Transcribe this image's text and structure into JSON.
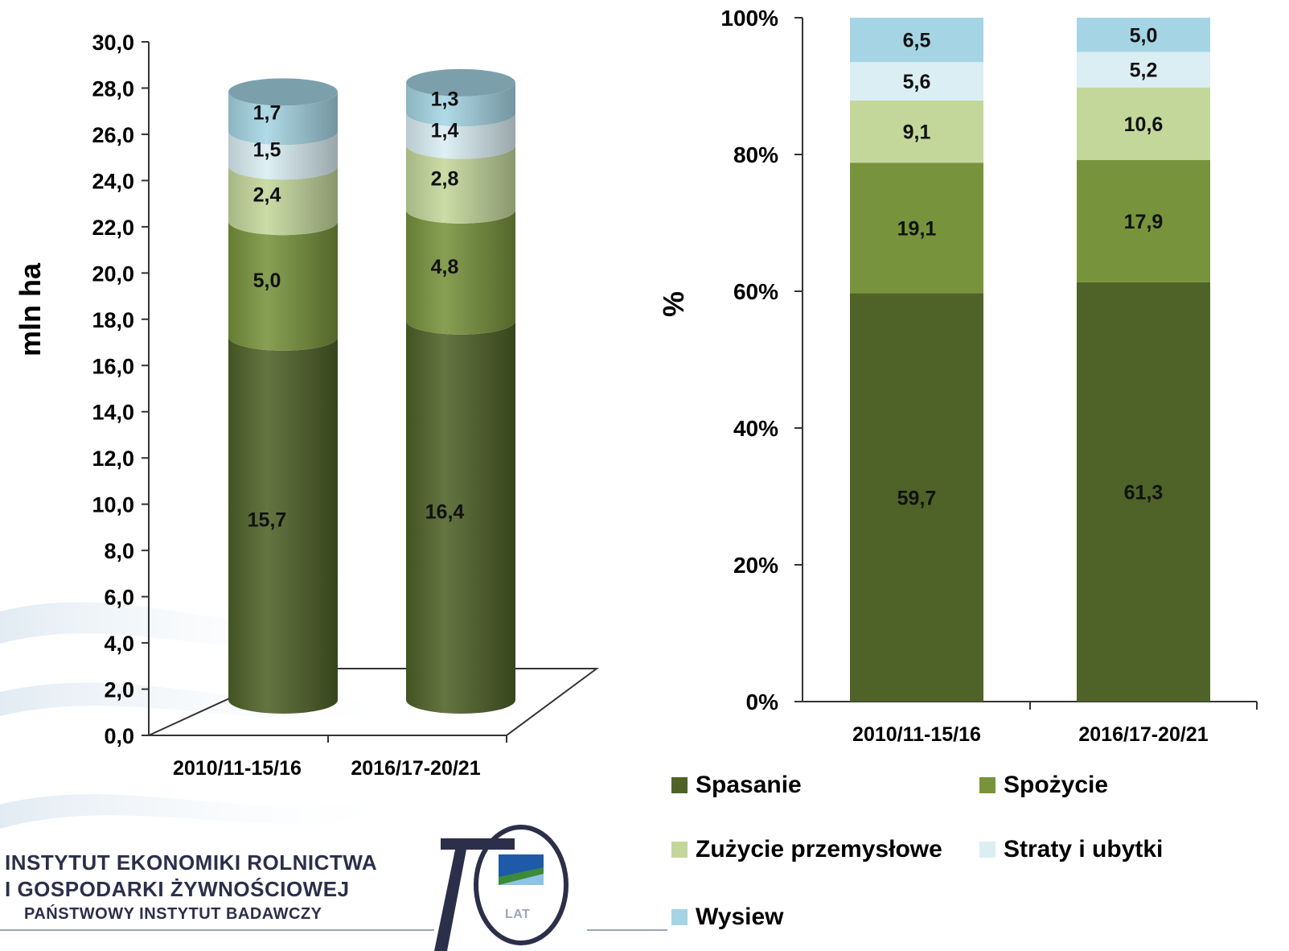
{
  "colors": {
    "spasanie": "#4f6228",
    "spozycie": "#77933c",
    "przemyslowe": "#c4d79b",
    "straty": "#dbeef4",
    "wysiew": "#a5d5e4"
  },
  "logo": {
    "line1": "INSTYTUT EKONOMIKI ROLNICTWA",
    "line2": "I GOSPODARKI ŻYWNOŚCIOWEJ",
    "line3": "PAŃSTWOWY INSTYTUT BADAWCZY",
    "emblem_text": "LAT"
  },
  "legend": [
    {
      "label": "Spasanie",
      "color_key": "spasanie"
    },
    {
      "label": "Spożycie",
      "color_key": "spozycie"
    },
    {
      "label": "Zużycie przemysłowe",
      "color_key": "przemyslowe"
    },
    {
      "label": "Straty i ubytki",
      "color_key": "straty"
    },
    {
      "label": "Wysiew",
      "color_key": "wysiew"
    }
  ],
  "chart_data": [
    {
      "type": "bar",
      "stacked": true,
      "style": "3d-cylinder",
      "categories": [
        "2010/11-15/16",
        "2016/17-20/21"
      ],
      "ylabel": "mln ha",
      "ylim": [
        0,
        30
      ],
      "yticks": [
        "0,0",
        "2,0",
        "4,0",
        "6,0",
        "8,0",
        "10,0",
        "12,0",
        "14,0",
        "16,0",
        "18,0",
        "20,0",
        "22,0",
        "24,0",
        "26,0",
        "28,0",
        "30,0"
      ],
      "series": [
        {
          "name": "Spasanie",
          "color_key": "spasanie",
          "values": [
            15.7,
            16.4
          ],
          "labels": [
            "15,7",
            "16,4"
          ]
        },
        {
          "name": "Spożycie",
          "color_key": "spozycie",
          "values": [
            5.0,
            4.8
          ],
          "labels": [
            "5,0",
            "4,8"
          ]
        },
        {
          "name": "Zużycie przemysłowe",
          "color_key": "przemyslowe",
          "values": [
            2.4,
            2.8
          ],
          "labels": [
            "2,4",
            "2,8"
          ]
        },
        {
          "name": "Straty i ubytki",
          "color_key": "straty",
          "values": [
            1.5,
            1.4
          ],
          "labels": [
            "1,5",
            "1,4"
          ]
        },
        {
          "name": "Wysiew",
          "color_key": "wysiew",
          "values": [
            1.7,
            1.3
          ],
          "labels": [
            "1,7",
            "1,3"
          ]
        }
      ]
    },
    {
      "type": "bar",
      "stacked": true,
      "percent": true,
      "categories": [
        "2010/11-15/16",
        "2016/17-20/21"
      ],
      "ylabel": "%",
      "ylim": [
        0,
        100
      ],
      "yticks": [
        "0%",
        "20%",
        "40%",
        "60%",
        "80%",
        "100%"
      ],
      "series": [
        {
          "name": "Spasanie",
          "color_key": "spasanie",
          "values": [
            59.7,
            61.3
          ],
          "labels": [
            "59,7",
            "61,3"
          ]
        },
        {
          "name": "Spożycie",
          "color_key": "spozycie",
          "values": [
            19.1,
            17.9
          ],
          "labels": [
            "19,1",
            "17,9"
          ]
        },
        {
          "name": "Zużycie przemysłowe",
          "color_key": "przemyslowe",
          "values": [
            9.1,
            10.6
          ],
          "labels": [
            "9,1",
            "10,6"
          ]
        },
        {
          "name": "Straty i ubytki",
          "color_key": "straty",
          "values": [
            5.6,
            5.2
          ],
          "labels": [
            "5,6",
            "5,2"
          ]
        },
        {
          "name": "Wysiew",
          "color_key": "wysiew",
          "values": [
            6.5,
            5.0
          ],
          "labels": [
            "6,5",
            "5,0"
          ]
        }
      ]
    }
  ]
}
